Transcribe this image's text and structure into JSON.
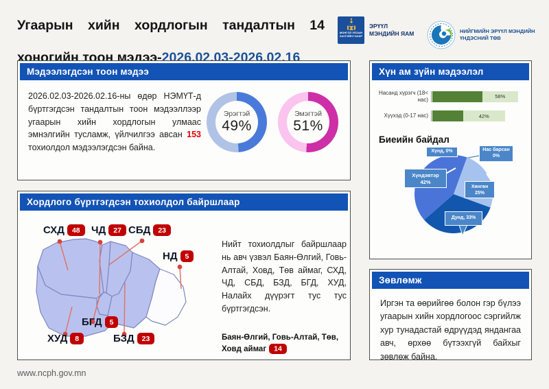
{
  "header": {
    "title_line1": "Угаарын хийн хордлогын тандалтын 14",
    "title_line2_black": "хоногийн тоон мэдээ-",
    "title_line2_date": "2026.02.03-2026.02.16",
    "moh_emblem_text": "МОНГОЛ УЛСЫН ЗАСГИЙН ГАЗАР",
    "moh_label": "ЭРҮҮЛ МЭНДИЙН ЯАМ",
    "ncph_label": "НИЙГМИЙН ЭРҮҮЛ МЭНДИЙН ҮНДЭСНИЙ ТӨВ"
  },
  "reported": {
    "header": "Мэдээлэгдсэн тоон мэдээ",
    "body_pre": "2026.02.03-2026.02.16-ны өдөр НЭМҮТ-д бүртгэгдсэн тандалтын тоон мэдээллээр угаарын хийн хордлогын улмаас эмнэлгийн тусламж, үйлчилгээ авсан ",
    "body_count": "153",
    "body_post": " тохиолдол мэдээлэгдсэн байна.",
    "donuts": [
      {
        "label": "Эрэгтэй",
        "value": "49%",
        "pct": 49,
        "color": "#4a7ad9",
        "track": "#b0c3e6"
      },
      {
        "label": "Эмэгтэй",
        "value": "51%",
        "pct": 51,
        "color": "#cd2fa6",
        "track": "#fac4ee"
      }
    ]
  },
  "location": {
    "header": "Хордлого бүртгэгдсэн тохиолдол байршлаар",
    "districts": [
      {
        "code": "СХД",
        "count": "48"
      },
      {
        "code": "ЧД",
        "count": "27"
      },
      {
        "code": "СБД",
        "count": "23"
      },
      {
        "code": "НД",
        "count": "5"
      },
      {
        "code": "БГД",
        "count": "5"
      },
      {
        "code": "ХУД",
        "count": "8"
      },
      {
        "code": "БЗД",
        "count": "23"
      }
    ],
    "note": "Нийт тохиолдлыг байршлаар нь авч үзвэл Баян-Өлгий, Говь-Алтай, Ховд, Төв аймаг, СХД, ЧД, СБД, БЗД, БГД, ХУД, Налайх дүүрэгт тус тус бүртгэгдсэн.",
    "aimag_label": "Баян-Өлгий, Говь-Алтай, Төв, Ховд аймаг",
    "aimag_count": "14"
  },
  "demographics": {
    "header": "Хүн ам зүйн мэдээлэл",
    "bars": [
      {
        "label": "Насанд хүрэгч (18< нас)",
        "value": "58%",
        "pct": 58
      },
      {
        "label": "Хүүхэд (0-17 нас)",
        "value": "42%",
        "pct": 42
      }
    ],
    "condition_title": "Биеийн байдал",
    "pie_callouts": [
      "Хүнд, 0%",
      "Нас барсан 0%",
      "Хүндэвтэр 42%",
      "Хөнгөн 25%",
      "Дунд, 33%"
    ]
  },
  "advice": {
    "header": "Зөвлөмж",
    "body": "Иргэн та өөрийгөө болон гэр бүлээ угаарын хийн хордлогоос сэргийлж хур тунадастай өдрүүдэд яндангаа авч, өрхөө бүтээхгүй байхыг зөвлөж байна."
  },
  "footer": {
    "url": "www.ncph.gov.mn"
  },
  "chart_data": [
    {
      "type": "pie",
      "subtype": "donut-pair",
      "labels": [
        "Эрэгтэй",
        "Эмэгтэй"
      ],
      "values": [
        49,
        51
      ],
      "unit": "%",
      "colors": [
        "#4a7ad9",
        "#cd2fa6"
      ]
    },
    {
      "type": "bar",
      "orientation": "horizontal",
      "title": "Хүн ам зүйн мэдээлэл",
      "categories": [
        "Насанд хүрэгч (18< нас)",
        "Хүүхэд (0-17 нас)"
      ],
      "values": [
        58,
        42
      ],
      "unit": "%",
      "colors": {
        "fill": "#538135",
        "track": "#d9e8ca"
      }
    },
    {
      "type": "pie",
      "title": "Биеийн байдал",
      "labels": [
        "Хүнд",
        "Нас барсан",
        "Хөнгөн",
        "Дунд",
        "Хүндэвтэр"
      ],
      "values": [
        0,
        0,
        25,
        33,
        42
      ],
      "unit": "%",
      "colors": [
        "#4a86c8",
        "#4a86c8",
        "#a6c2ef",
        "#1257ad",
        "#4a74d8"
      ]
    },
    {
      "type": "map",
      "title": "Хордлого бүртгэгдсэн тохиолдол байршлаар",
      "labels": [
        "СХД",
        "ЧД",
        "СБД",
        "НД",
        "БГД",
        "ХУД",
        "БЗД",
        "Баян-Өлгий, Говь-Алтай, Төв, Ховд аймаг"
      ],
      "values": [
        48,
        27,
        23,
        5,
        5,
        8,
        23,
        14
      ],
      "total": 153
    }
  ]
}
